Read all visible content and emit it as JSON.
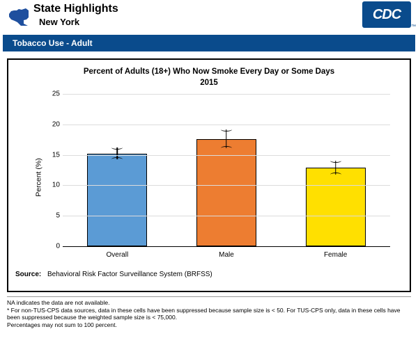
{
  "header": {
    "title": "State Highlights",
    "state": "New York",
    "state_icon_color": "#1e4f9e",
    "logo_text": "CDC",
    "logo_bg": "#0a4b8c",
    "logo_fg": "#ffffff"
  },
  "section": {
    "label": "Tobacco Use - Adult",
    "bg": "#0a4b8c",
    "fg": "#ffffff"
  },
  "chart": {
    "type": "bar",
    "title_line1": "Percent of Adults (18+) Who Now Smoke Every Day or Some Days",
    "title_line2": "2015",
    "title_fontsize": 11.5,
    "ylabel": "Percent (%)",
    "label_fontsize": 10.5,
    "ylim": [
      0,
      25
    ],
    "ytick_step": 5,
    "yticks": [
      0,
      5,
      10,
      15,
      20,
      25
    ],
    "background_color": "#ffffff",
    "grid_color": "#dcdcdc",
    "axis_color": "#000000",
    "bar_width": 0.6,
    "bar_border_color": "#000000",
    "categories": [
      "Overall",
      "Male",
      "Female"
    ],
    "values": [
      15.2,
      17.6,
      12.9
    ],
    "error_low": [
      14.3,
      16.1,
      11.8
    ],
    "error_high": [
      16.2,
      19.2,
      14.1
    ],
    "bar_colors": [
      "#5b9bd5",
      "#ed7d31",
      "#ffe000"
    ],
    "tick_fontsize": 10,
    "errorbar_color": "#000000",
    "errorbar_capwidth": 14
  },
  "source": {
    "label": "Source:",
    "text": "Behavioral Risk Factor Surveillance System (BRFSS)"
  },
  "footnotes": [
    "NA indicates the data are not available.",
    "* For non-TUS-CPS data sources, data in these cells have been suppressed because sample size is < 50. For TUS-CPS only, data in these cells have been suppressed because the weighted sample size is < 75,000.",
    "Percentages may not sum to 100 percent."
  ]
}
